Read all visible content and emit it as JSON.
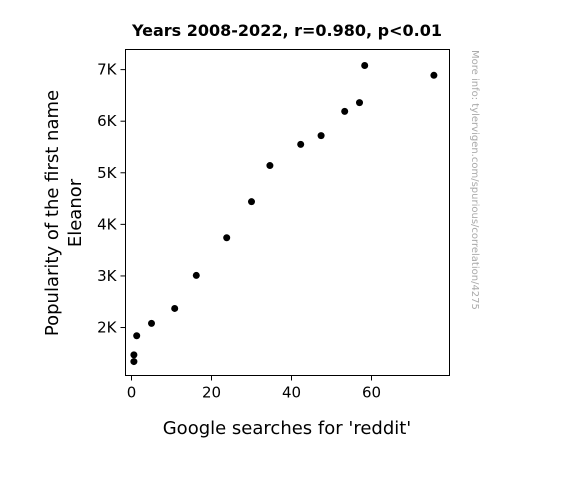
{
  "chart_data": {
    "type": "scatter",
    "title": "Years 2008-2022, r=0.980, p<0.01",
    "xlabel": "Google searches for 'reddit'",
    "ylabel_lines": [
      "Popularity of the first name",
      "Eleanor"
    ],
    "xlim": [
      -1.5,
      79.5
    ],
    "ylim": [
      1070,
      7390
    ],
    "x_ticks": [
      0,
      20,
      40,
      60
    ],
    "x_tick_labels": [
      "0",
      "20",
      "40",
      "60"
    ],
    "y_ticks": [
      2000,
      3000,
      4000,
      5000,
      6000,
      7000
    ],
    "y_tick_labels": [
      "2K",
      "3K",
      "4K",
      "5K",
      "6K",
      "7K"
    ],
    "grid": false,
    "marker_color": "#000000",
    "points": [
      {
        "x": 0.6,
        "y": 1340
      },
      {
        "x": 0.6,
        "y": 1470
      },
      {
        "x": 1.3,
        "y": 1840
      },
      {
        "x": 5.0,
        "y": 2080
      },
      {
        "x": 10.8,
        "y": 2370
      },
      {
        "x": 16.2,
        "y": 3010
      },
      {
        "x": 23.8,
        "y": 3740
      },
      {
        "x": 30.0,
        "y": 4440
      },
      {
        "x": 34.6,
        "y": 5140
      },
      {
        "x": 42.3,
        "y": 5550
      },
      {
        "x": 47.4,
        "y": 5720
      },
      {
        "x": 53.3,
        "y": 6190
      },
      {
        "x": 57.0,
        "y": 6360
      },
      {
        "x": 58.3,
        "y": 7080
      },
      {
        "x": 75.6,
        "y": 6890
      }
    ],
    "side_note": "More info: tylervigen.com/spurious/correlation/4275"
  }
}
